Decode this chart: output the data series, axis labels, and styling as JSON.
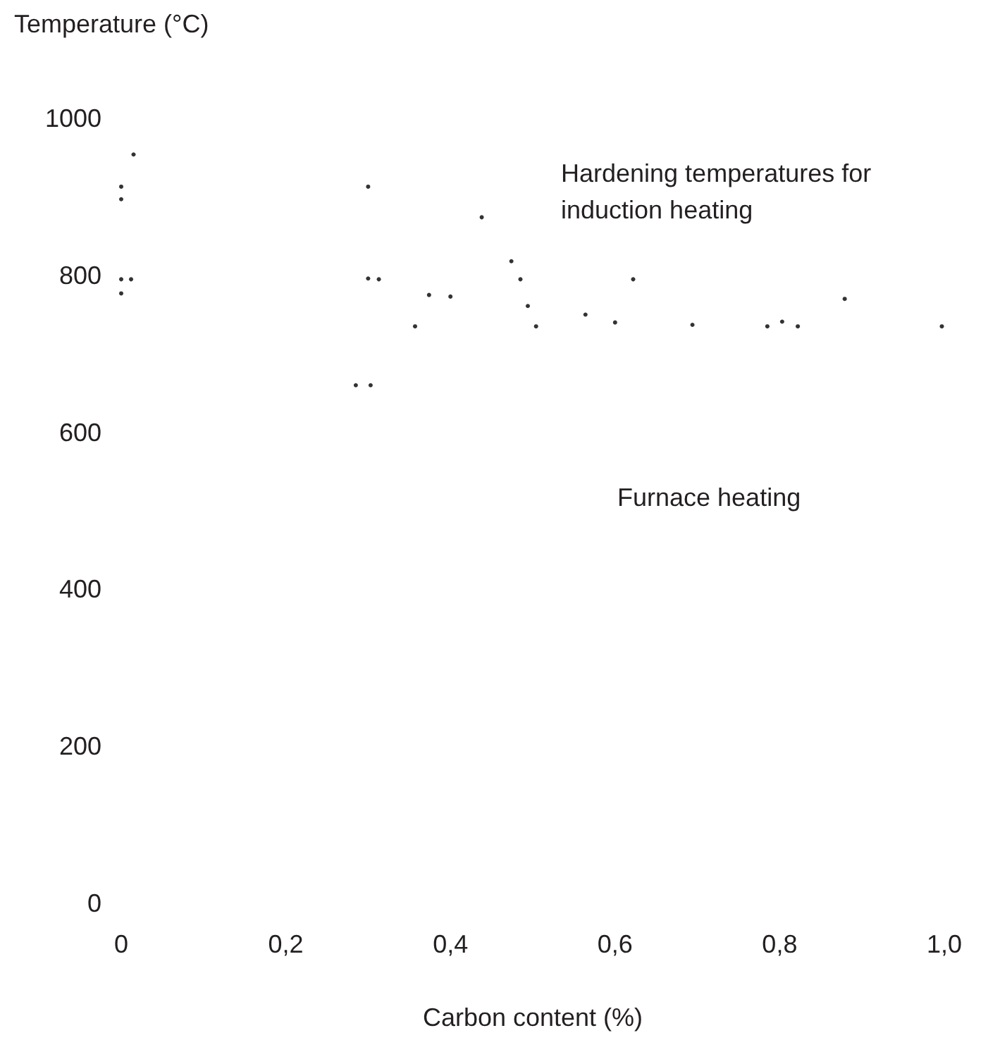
{
  "chart_data": {
    "type": "scatter",
    "xlabel": "Carbon content (%)",
    "ylabel": "Temperature (°C)",
    "annotations": [
      "Hardening temperatures for induction heating",
      "Furnace heating"
    ],
    "xlim": [
      0,
      1.0
    ],
    "xticks": [
      0,
      {
        "value": 0.2,
        "label": "0,2"
      },
      {
        "value": 0.4,
        "label": "0,4"
      },
      {
        "value": 0.6,
        "label": "0,6"
      },
      {
        "value": 0.8,
        "label": "0,8"
      },
      {
        "value": 1.0,
        "label": "1,0"
      }
    ],
    "ylim": [
      0,
      1000
    ],
    "yticks": [
      0,
      200,
      400,
      600,
      800,
      1000
    ],
    "marker": "circle",
    "series": [
      {
        "color": "#000000",
        "x": [
          0.015,
          0,
          0,
          0,
          0.012,
          0,
          0.3,
          0.313,
          0.3,
          0.374,
          0.357,
          0.4,
          0.438,
          0.474,
          0.485,
          0.494,
          0.504,
          0.285,
          0.303,
          0.622,
          0.564,
          0.6,
          0.694,
          0.785,
          0.803,
          0.822,
          0.879,
          0.997
        ],
        "values": [
          954,
          913,
          897,
          795,
          795,
          777,
          796,
          795,
          913,
          775,
          735,
          773,
          874,
          818,
          795,
          761,
          735,
          660,
          660,
          795,
          750,
          740,
          737,
          735,
          741,
          735,
          770,
          735
        ]
      }
    ]
  }
}
